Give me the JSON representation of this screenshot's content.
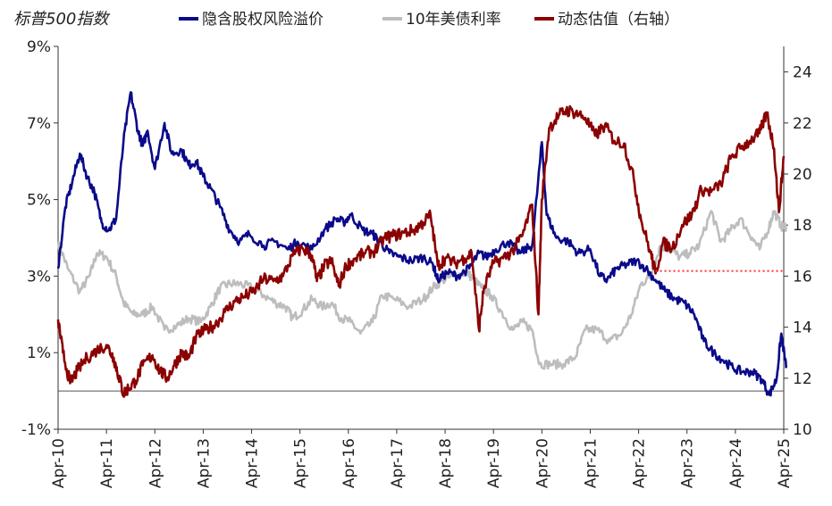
{
  "chart_data": {
    "type": "line",
    "title": "标普500指数",
    "legend_position": "top",
    "grid": false,
    "x_categories": [
      "Apr-10",
      "Apr-11",
      "Apr-12",
      "Apr-13",
      "Apr-14",
      "Apr-15",
      "Apr-16",
      "Apr-17",
      "Apr-18",
      "Apr-19",
      "Apr-20",
      "Apr-21",
      "Apr-22",
      "Apr-23",
      "Apr-24",
      "Apr-25"
    ],
    "y_left": {
      "min": -1,
      "max": 9,
      "ticks": [
        "-1%",
        "1%",
        "3%",
        "5%",
        "7%",
        "9%"
      ],
      "tick_values": [
        -1,
        1,
        3,
        5,
        7,
        9
      ],
      "unit": "%",
      "tick_label_colors": [
        "#d40000",
        "#222222",
        "#222222",
        "#222222",
        "#222222",
        "#222222"
      ]
    },
    "y_right": {
      "min": 10,
      "max": 25,
      "ticks": [
        "10",
        "12",
        "14",
        "16",
        "18",
        "20",
        "22",
        "24"
      ],
      "tick_values": [
        10,
        12,
        14,
        16,
        18,
        20,
        22,
        24
      ]
    },
    "series": [
      {
        "name": "隐含股权风险溢价",
        "color": "#0a0a8a",
        "axis": "left",
        "points": [
          [
            2010.25,
            3.2
          ],
          [
            2010.4,
            4.8
          ],
          [
            2010.55,
            5.5
          ],
          [
            2010.7,
            6.2
          ],
          [
            2010.85,
            5.6
          ],
          [
            2011.0,
            5.2
          ],
          [
            2011.15,
            4.4
          ],
          [
            2011.3,
            4.2
          ],
          [
            2011.45,
            4.5
          ],
          [
            2011.6,
            6.5
          ],
          [
            2011.75,
            7.8
          ],
          [
            2011.9,
            6.8
          ],
          [
            2012.0,
            6.4
          ],
          [
            2012.1,
            6.8
          ],
          [
            2012.25,
            5.8
          ],
          [
            2012.45,
            7.0
          ],
          [
            2012.6,
            6.2
          ],
          [
            2012.8,
            6.3
          ],
          [
            2012.95,
            5.9
          ],
          [
            2013.1,
            6.0
          ],
          [
            2013.25,
            5.6
          ],
          [
            2013.4,
            5.3
          ],
          [
            2013.6,
            4.8
          ],
          [
            2013.8,
            4.2
          ],
          [
            2014.0,
            3.9
          ],
          [
            2014.2,
            4.1
          ],
          [
            2014.5,
            3.8
          ],
          [
            2014.75,
            3.9
          ],
          [
            2015.0,
            3.7
          ],
          [
            2015.2,
            3.9
          ],
          [
            2015.5,
            3.7
          ],
          [
            2015.75,
            4.2
          ],
          [
            2016.0,
            4.5
          ],
          [
            2016.15,
            4.4
          ],
          [
            2016.3,
            4.6
          ],
          [
            2016.55,
            4.2
          ],
          [
            2016.75,
            4.1
          ],
          [
            2016.9,
            3.9
          ],
          [
            2017.1,
            3.6
          ],
          [
            2017.3,
            3.5
          ],
          [
            2017.55,
            3.4
          ],
          [
            2017.8,
            3.5
          ],
          [
            2018.0,
            3.3
          ],
          [
            2018.1,
            2.9
          ],
          [
            2018.3,
            3.1
          ],
          [
            2018.5,
            3.0
          ],
          [
            2018.75,
            3.2
          ],
          [
            2018.95,
            3.6
          ],
          [
            2019.1,
            3.5
          ],
          [
            2019.3,
            3.7
          ],
          [
            2019.55,
            3.9
          ],
          [
            2019.8,
            3.6
          ],
          [
            2020.05,
            3.8
          ],
          [
            2020.25,
            6.5
          ],
          [
            2020.35,
            4.6
          ],
          [
            2020.55,
            4.0
          ],
          [
            2020.8,
            3.9
          ],
          [
            2021.0,
            3.6
          ],
          [
            2021.25,
            3.7
          ],
          [
            2021.45,
            3.0
          ],
          [
            2021.6,
            2.9
          ],
          [
            2021.8,
            3.2
          ],
          [
            2022.0,
            3.3
          ],
          [
            2022.2,
            3.4
          ],
          [
            2022.4,
            3.2
          ],
          [
            2022.6,
            2.9
          ],
          [
            2022.8,
            2.6
          ],
          [
            2023.0,
            2.4
          ],
          [
            2023.2,
            2.3
          ],
          [
            2023.4,
            2.0
          ],
          [
            2023.6,
            1.3
          ],
          [
            2023.8,
            1.0
          ],
          [
            2024.0,
            0.8
          ],
          [
            2024.2,
            0.6
          ],
          [
            2024.4,
            0.5
          ],
          [
            2024.6,
            0.5
          ],
          [
            2024.8,
            0.3
          ],
          [
            2024.95,
            -0.1
          ],
          [
            2025.1,
            0.3
          ],
          [
            2025.2,
            1.5
          ],
          [
            2025.3,
            0.6
          ]
        ]
      },
      {
        "name": "10年美债利率",
        "color": "#bdbdbd",
        "axis": "left",
        "points": [
          [
            2010.25,
            3.9
          ],
          [
            2010.45,
            3.2
          ],
          [
            2010.7,
            2.6
          ],
          [
            2010.9,
            3.0
          ],
          [
            2011.05,
            3.6
          ],
          [
            2011.25,
            3.5
          ],
          [
            2011.45,
            3.0
          ],
          [
            2011.6,
            2.3
          ],
          [
            2011.8,
            2.0
          ],
          [
            2012.0,
            2.0
          ],
          [
            2012.2,
            2.2
          ],
          [
            2012.45,
            1.6
          ],
          [
            2012.7,
            1.7
          ],
          [
            2012.95,
            1.9
          ],
          [
            2013.2,
            1.8
          ],
          [
            2013.4,
            2.2
          ],
          [
            2013.6,
            2.7
          ],
          [
            2013.8,
            2.8
          ],
          [
            2014.0,
            2.8
          ],
          [
            2014.25,
            2.7
          ],
          [
            2014.5,
            2.5
          ],
          [
            2014.75,
            2.3
          ],
          [
            2014.95,
            2.2
          ],
          [
            2015.1,
            1.9
          ],
          [
            2015.3,
            2.1
          ],
          [
            2015.5,
            2.4
          ],
          [
            2015.7,
            2.2
          ],
          [
            2015.9,
            2.3
          ],
          [
            2016.1,
            1.9
          ],
          [
            2016.3,
            1.8
          ],
          [
            2016.5,
            1.5
          ],
          [
            2016.75,
            1.8
          ],
          [
            2016.95,
            2.5
          ],
          [
            2017.2,
            2.4
          ],
          [
            2017.5,
            2.2
          ],
          [
            2017.8,
            2.4
          ],
          [
            2018.0,
            2.7
          ],
          [
            2018.2,
            2.9
          ],
          [
            2018.45,
            3.0
          ],
          [
            2018.7,
            3.1
          ],
          [
            2018.85,
            2.9
          ],
          [
            2019.0,
            2.7
          ],
          [
            2019.2,
            2.5
          ],
          [
            2019.4,
            2.1
          ],
          [
            2019.65,
            1.6
          ],
          [
            2019.85,
            1.8
          ],
          [
            2020.05,
            1.6
          ],
          [
            2020.2,
            0.7
          ],
          [
            2020.45,
            0.7
          ],
          [
            2020.7,
            0.7
          ],
          [
            2020.95,
            0.9
          ],
          [
            2021.15,
            1.6
          ],
          [
            2021.4,
            1.6
          ],
          [
            2021.65,
            1.3
          ],
          [
            2021.9,
            1.5
          ],
          [
            2022.1,
            2.0
          ],
          [
            2022.3,
            2.8
          ],
          [
            2022.5,
            3.0
          ],
          [
            2022.7,
            3.8
          ],
          [
            2022.9,
            3.7
          ],
          [
            2023.1,
            3.5
          ],
          [
            2023.3,
            3.6
          ],
          [
            2023.5,
            3.8
          ],
          [
            2023.75,
            4.7
          ],
          [
            2023.95,
            3.9
          ],
          [
            2024.15,
            4.2
          ],
          [
            2024.35,
            4.5
          ],
          [
            2024.6,
            4.0
          ],
          [
            2024.75,
            3.7
          ],
          [
            2024.95,
            4.3
          ],
          [
            2025.05,
            4.7
          ],
          [
            2025.2,
            4.3
          ],
          [
            2025.3,
            4.3
          ]
        ]
      },
      {
        "name": "动态估值（右轴）",
        "color": "#8b0000",
        "axis": "right",
        "points": [
          [
            2010.25,
            14.3
          ],
          [
            2010.35,
            13.0
          ],
          [
            2010.5,
            11.8
          ],
          [
            2010.65,
            12.3
          ],
          [
            2010.85,
            12.8
          ],
          [
            2011.05,
            13.1
          ],
          [
            2011.25,
            13.3
          ],
          [
            2011.4,
            12.8
          ],
          [
            2011.5,
            12.1
          ],
          [
            2011.6,
            11.4
          ],
          [
            2011.7,
            11.6
          ],
          [
            2011.85,
            11.9
          ],
          [
            2012.0,
            12.5
          ],
          [
            2012.2,
            12.9
          ],
          [
            2012.35,
            12.3
          ],
          [
            2012.5,
            12.0
          ],
          [
            2012.65,
            12.5
          ],
          [
            2012.8,
            13.0
          ],
          [
            2012.95,
            12.8
          ],
          [
            2013.1,
            13.6
          ],
          [
            2013.3,
            13.9
          ],
          [
            2013.5,
            14.1
          ],
          [
            2013.7,
            14.6
          ],
          [
            2013.9,
            15.0
          ],
          [
            2014.1,
            15.2
          ],
          [
            2014.3,
            15.4
          ],
          [
            2014.5,
            15.9
          ],
          [
            2014.7,
            15.8
          ],
          [
            2014.9,
            16.0
          ],
          [
            2015.1,
            16.8
          ],
          [
            2015.3,
            17.1
          ],
          [
            2015.5,
            16.8
          ],
          [
            2015.6,
            15.8
          ],
          [
            2015.75,
            16.4
          ],
          [
            2015.9,
            16.6
          ],
          [
            2016.05,
            15.6
          ],
          [
            2016.2,
            16.4
          ],
          [
            2016.4,
            16.7
          ],
          [
            2016.6,
            16.9
          ],
          [
            2016.8,
            17.0
          ],
          [
            2017.0,
            17.5
          ],
          [
            2017.2,
            17.6
          ],
          [
            2017.4,
            17.7
          ],
          [
            2017.6,
            17.8
          ],
          [
            2017.8,
            18.1
          ],
          [
            2017.95,
            18.4
          ],
          [
            2018.1,
            16.4
          ],
          [
            2018.25,
            16.7
          ],
          [
            2018.45,
            16.5
          ],
          [
            2018.65,
            16.7
          ],
          [
            2018.8,
            16.9
          ],
          [
            2018.95,
            13.9
          ],
          [
            2019.05,
            15.5
          ],
          [
            2019.25,
            16.5
          ],
          [
            2019.45,
            16.7
          ],
          [
            2019.65,
            17.0
          ],
          [
            2019.85,
            17.6
          ],
          [
            2020.05,
            18.8
          ],
          [
            2020.18,
            14.5
          ],
          [
            2020.25,
            19.0
          ],
          [
            2020.4,
            21.8
          ],
          [
            2020.6,
            22.3
          ],
          [
            2020.75,
            22.5
          ],
          [
            2020.95,
            22.4
          ],
          [
            2021.15,
            22.2
          ],
          [
            2021.35,
            21.5
          ],
          [
            2021.55,
            21.9
          ],
          [
            2021.75,
            21.3
          ],
          [
            2021.95,
            21.2
          ],
          [
            2022.15,
            19.8
          ],
          [
            2022.3,
            18.2
          ],
          [
            2022.5,
            16.9
          ],
          [
            2022.6,
            16.1
          ],
          [
            2022.75,
            17.3
          ],
          [
            2022.95,
            17.1
          ],
          [
            2023.15,
            18.0
          ],
          [
            2023.35,
            18.4
          ],
          [
            2023.55,
            19.4
          ],
          [
            2023.75,
            19.3
          ],
          [
            2023.95,
            19.6
          ],
          [
            2024.15,
            20.6
          ],
          [
            2024.35,
            21.0
          ],
          [
            2024.55,
            21.3
          ],
          [
            2024.75,
            21.6
          ],
          [
            2024.9,
            22.4
          ],
          [
            2025.05,
            21.0
          ],
          [
            2025.15,
            18.5
          ],
          [
            2025.25,
            20.7
          ]
        ]
      }
    ],
    "reference_line": {
      "axis": "right",
      "value": 16.2,
      "color": "#ff3030",
      "style": "dotted"
    },
    "zero_line": {
      "axis": "left",
      "value": 0,
      "color": "#555555"
    }
  }
}
